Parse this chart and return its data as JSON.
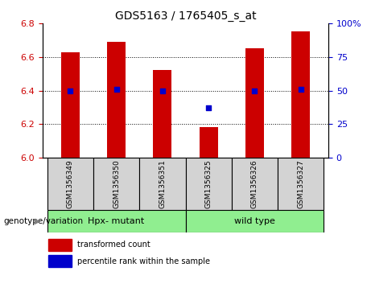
{
  "title": "GDS5163 / 1765405_s_at",
  "samples": [
    "GSM1356349",
    "GSM1356350",
    "GSM1356351",
    "GSM1356325",
    "GSM1356326",
    "GSM1356327"
  ],
  "bar_values": [
    6.63,
    6.69,
    6.52,
    6.18,
    6.65,
    6.75
  ],
  "percentile_values": [
    6.4,
    6.41,
    6.4,
    6.33,
    6.4,
    6.41
  ],
  "bar_color": "#cc0000",
  "dot_color": "#0000cc",
  "ylim_left": [
    6.0,
    6.8
  ],
  "ylim_right": [
    0,
    100
  ],
  "yticks_left": [
    6.0,
    6.2,
    6.4,
    6.6,
    6.8
  ],
  "yticks_right": [
    0,
    25,
    50,
    75,
    100
  ],
  "ytick_labels_right": [
    "0",
    "25",
    "50",
    "75",
    "100%"
  ],
  "groups": [
    {
      "label": "Hpx- mutant",
      "color": "#90ee90"
    },
    {
      "label": "wild type",
      "color": "#90ee90"
    }
  ],
  "group_label": "genotype/variation",
  "legend_entries": [
    "transformed count",
    "percentile rank within the sample"
  ],
  "dotted_line_y": [
    6.2,
    6.4,
    6.6
  ],
  "bar_width": 0.4,
  "tick_label_color_left": "#cc0000",
  "tick_label_color_right": "#0000cc",
  "sample_box_color": "#d3d3d3",
  "title_fontsize": 10,
  "tick_fontsize": 8,
  "label_fontsize": 7,
  "legend_fontsize": 7
}
